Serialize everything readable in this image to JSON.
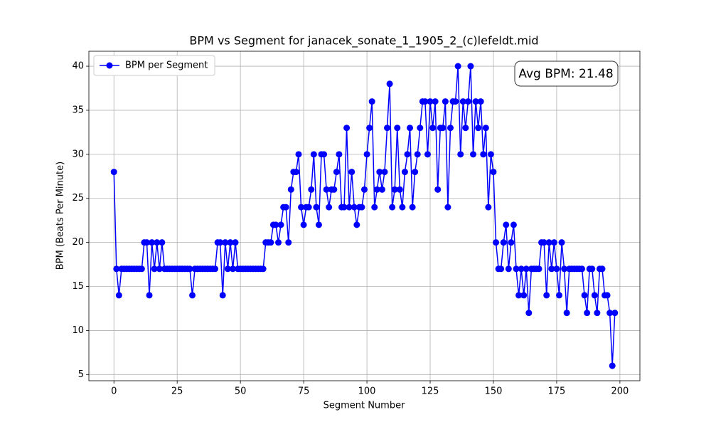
{
  "chart_data": {
    "type": "line",
    "title": "BPM vs Segment for janacek_sonate_1_1905_2_(c)lefeldt.mid",
    "x_label": "Segment Number",
    "y_label": "BPM (Beats Per Minute)",
    "annotation": "Avg BPM: 21.48",
    "legend": "upper left",
    "grid": true,
    "xlim": [
      -9.9,
      207.9
    ],
    "ylim": [
      4.3,
      41.7
    ],
    "xticks": [
      0,
      25,
      50,
      75,
      100,
      125,
      150,
      175,
      200
    ],
    "yticks": [
      5,
      10,
      15,
      20,
      25,
      30,
      35,
      40
    ],
    "x": [
      0,
      1,
      2,
      3,
      4,
      5,
      6,
      7,
      8,
      9,
      10,
      11,
      12,
      13,
      14,
      15,
      16,
      17,
      18,
      19,
      20,
      21,
      22,
      23,
      24,
      25,
      26,
      27,
      28,
      29,
      30,
      31,
      32,
      33,
      34,
      35,
      36,
      37,
      38,
      39,
      40,
      41,
      42,
      43,
      44,
      45,
      46,
      47,
      48,
      49,
      50,
      51,
      52,
      53,
      54,
      55,
      56,
      57,
      58,
      59,
      60,
      61,
      62,
      63,
      64,
      65,
      66,
      67,
      68,
      69,
      70,
      71,
      72,
      73,
      74,
      75,
      76,
      77,
      78,
      79,
      80,
      81,
      82,
      83,
      84,
      85,
      86,
      87,
      88,
      89,
      90,
      91,
      92,
      93,
      94,
      95,
      96,
      97,
      98,
      99,
      100,
      101,
      102,
      103,
      104,
      105,
      106,
      107,
      108,
      109,
      110,
      111,
      112,
      113,
      114,
      115,
      116,
      117,
      118,
      119,
      120,
      121,
      122,
      123,
      124,
      125,
      126,
      127,
      128,
      129,
      130,
      131,
      132,
      133,
      134,
      135,
      136,
      137,
      138,
      139,
      140,
      141,
      142,
      143,
      144,
      145,
      146,
      147,
      148,
      149,
      150,
      151,
      152,
      153,
      154,
      155,
      156,
      157,
      158,
      159,
      160,
      161,
      162,
      163,
      164,
      165,
      166,
      167,
      168,
      169,
      170,
      171,
      172,
      173,
      174,
      175,
      176,
      177,
      178,
      179,
      180,
      181,
      182,
      183,
      184,
      185,
      186,
      187,
      188,
      189,
      190,
      191,
      192,
      193,
      194,
      195,
      196,
      197,
      198
    ],
    "series": [
      {
        "name": "BPM per Segment",
        "color": "#0000ff",
        "values": [
          28,
          17,
          14,
          17,
          17,
          17,
          17,
          17,
          17,
          17,
          17,
          17,
          20,
          20,
          14,
          20,
          17,
          20,
          17,
          20,
          17,
          17,
          17,
          17,
          17,
          17,
          17,
          17,
          17,
          17,
          17,
          14,
          17,
          17,
          17,
          17,
          17,
          17,
          17,
          17,
          17,
          20,
          20,
          14,
          20,
          17,
          20,
          17,
          20,
          17,
          17,
          17,
          17,
          17,
          17,
          17,
          17,
          17,
          17,
          17,
          20,
          20,
          20,
          22,
          22,
          20,
          22,
          24,
          24,
          20,
          26,
          28,
          28,
          30,
          24,
          22,
          24,
          24,
          26,
          30,
          24,
          22,
          30,
          30,
          26,
          24,
          26,
          26,
          28,
          30,
          24,
          24,
          33,
          24,
          28,
          24,
          22,
          24,
          24,
          26,
          30,
          33,
          36,
          24,
          26,
          28,
          26,
          28,
          33,
          38,
          24,
          26,
          33,
          26,
          24,
          28,
          30,
          33,
          24,
          28,
          30,
          33,
          36,
          36,
          30,
          36,
          33,
          36,
          26,
          33,
          33,
          36,
          24,
          33,
          36,
          36,
          40,
          30,
          36,
          33,
          36,
          40,
          30,
          36,
          33,
          36,
          30,
          33,
          24,
          30,
          28,
          20,
          17,
          17,
          20,
          22,
          17,
          20,
          22,
          17,
          14,
          17,
          14,
          17,
          12,
          17,
          17,
          17,
          17,
          20,
          20,
          14,
          20,
          17,
          20,
          17,
          14,
          20,
          17,
          12,
          17,
          17,
          17,
          17,
          17,
          17,
          14,
          12,
          17,
          17,
          14,
          12,
          17,
          17,
          14,
          14,
          12,
          6,
          12
        ]
      }
    ]
  }
}
